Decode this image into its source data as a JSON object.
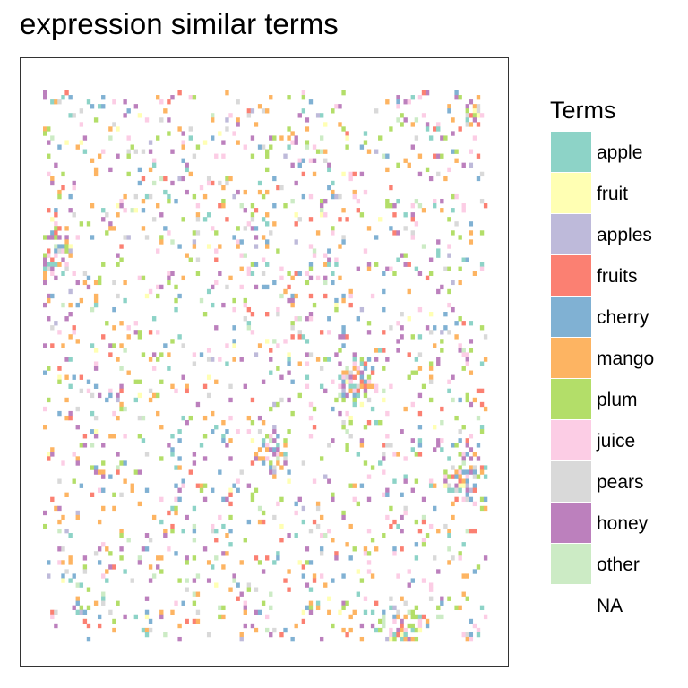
{
  "title": "expression similar terms",
  "chart_data": {
    "type": "heatmap",
    "title": "expression similar terms",
    "legend": {
      "title": "Terms",
      "placement": "right",
      "entries": [
        {
          "label": "apple",
          "color": "#8DD3C7"
        },
        {
          "label": "fruit",
          "color": "#FFFFB3"
        },
        {
          "label": "apples",
          "color": "#BEBADA"
        },
        {
          "label": "fruits",
          "color": "#FB8072"
        },
        {
          "label": "cherry",
          "color": "#80B1D3"
        },
        {
          "label": "mango",
          "color": "#FDB462"
        },
        {
          "label": "plum",
          "color": "#B3DE69"
        },
        {
          "label": "juice",
          "color": "#FCCDE5"
        },
        {
          "label": "pears",
          "color": "#D9D9D9"
        },
        {
          "label": "honey",
          "color": "#BC80BD"
        },
        {
          "label": "other",
          "color": "#CCEBC5"
        },
        {
          "label": "NA",
          "color": "#FFFFFF"
        }
      ]
    },
    "grid": false,
    "axes_visible": false,
    "rows": 122,
    "cols": 122,
    "density": 0.11
  }
}
